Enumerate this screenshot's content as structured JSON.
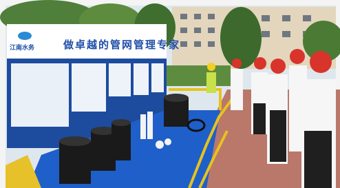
{
  "logo": {
    "text": "江南水务"
  },
  "banner": {
    "title": "做卓越的管网管理专家"
  }
}
